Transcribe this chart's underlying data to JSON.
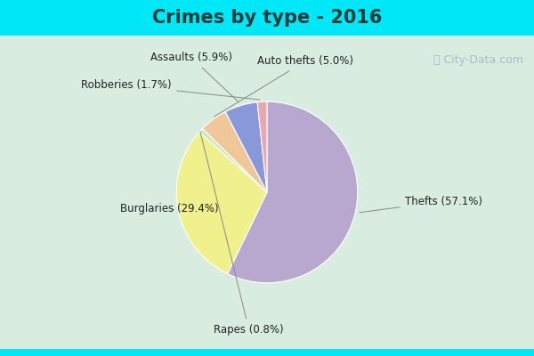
{
  "title": "Crimes by type - 2016",
  "slices": [
    {
      "label": "Thefts (57.1%)",
      "value": 57.1,
      "color": "#b8a8d0"
    },
    {
      "label": "Burglaries (29.4%)",
      "value": 29.4,
      "color": "#f0f08c"
    },
    {
      "label": "Rapes (0.8%)",
      "value": 0.8,
      "color": "#c8e8c0"
    },
    {
      "label": "Auto thefts (5.0%)",
      "value": 5.0,
      "color": "#f0c898"
    },
    {
      "label": "Assaults (5.9%)",
      "value": 5.9,
      "color": "#8898d8"
    },
    {
      "label": "Robberies (1.7%)",
      "value": 1.7,
      "color": "#e8a8b0"
    }
  ],
  "bg_color_outer": "#00e8f8",
  "bg_color_inner": "#d8ede0",
  "title_fontsize": 15,
  "label_fontsize": 8.5,
  "watermark": "ⓘ City-Data.com"
}
